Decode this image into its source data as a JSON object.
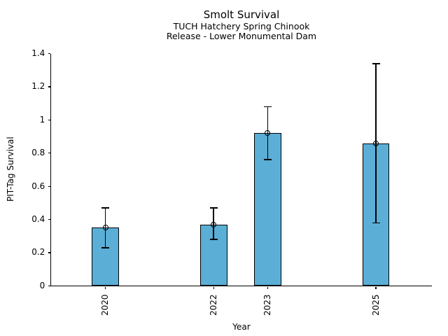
{
  "chart_data": {
    "type": "bar",
    "title": "Smolt Survival",
    "subtitle1": "TUCH Hatchery Spring Chinook",
    "subtitle2": "Release - Lower Monumental Dam",
    "xlabel": "Year",
    "ylabel": "PIT-Tag Survival",
    "categories": [
      "2020",
      "2022",
      "2023",
      "2025"
    ],
    "x": [
      2020,
      2022,
      2023,
      2025
    ],
    "values": [
      0.35,
      0.37,
      0.92,
      0.86
    ],
    "error_low": [
      0.23,
      0.28,
      0.76,
      0.38
    ],
    "error_high": [
      0.47,
      0.47,
      1.08,
      1.34
    ],
    "bar_width_years": 0.5,
    "marker": "open-circle",
    "xlim": [
      2019,
      2026.03
    ],
    "ylim": [
      0,
      1.4
    ],
    "yticks": [
      0,
      0.2,
      0.4,
      0.6,
      0.8,
      1,
      1.2,
      1.4
    ],
    "ytick_labels": [
      "0",
      "0.2",
      "0.4",
      "0.6",
      "0.8",
      "1",
      "1.2",
      "1.4"
    ],
    "grid": false,
    "legend": null,
    "colors": {
      "bar_fill": "#5BAED6",
      "bar_edge": "#000000",
      "error_bar": "#000000",
      "axis": "#000000",
      "text": "#000000",
      "background": "#ffffff"
    }
  }
}
